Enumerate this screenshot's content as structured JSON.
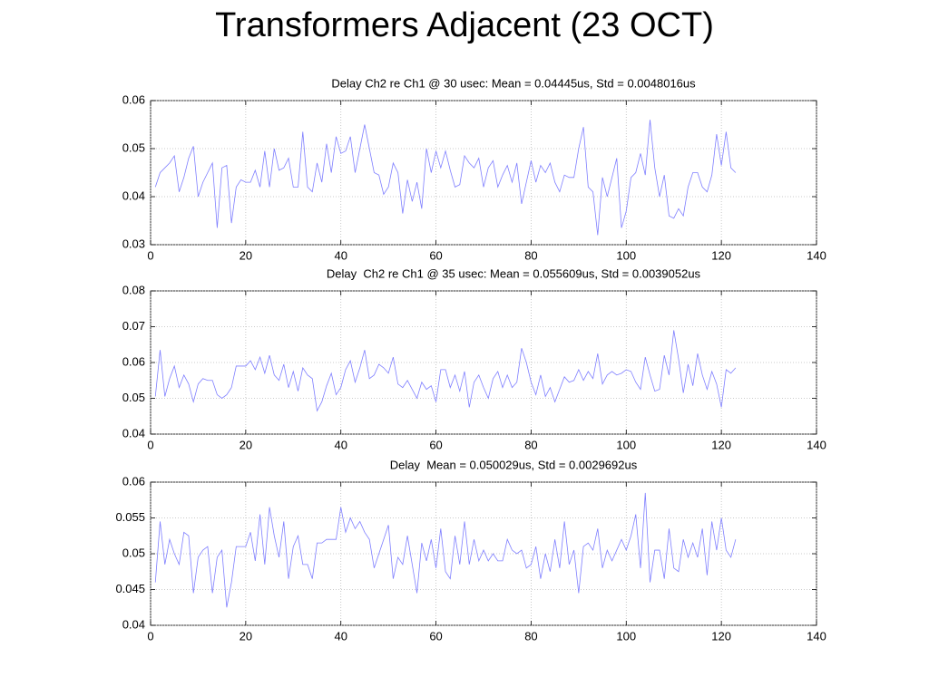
{
  "title": "Transformers Adjacent (23 OCT)",
  "chart_data": [
    {
      "type": "line",
      "title": "Delay Ch2 re Ch1 @ 30 usec: Mean = 0.04445us, Std = 0.0048016us",
      "xlim": [
        0,
        140
      ],
      "xticks": [
        0,
        20,
        40,
        60,
        80,
        100,
        120,
        140
      ],
      "ylim": [
        0.03,
        0.06
      ],
      "yticks": [
        0.03,
        0.04,
        0.05,
        0.06
      ],
      "grid": true,
      "color": "#7f7fff",
      "x": [
        1,
        2,
        3,
        4,
        5,
        6,
        7,
        8,
        9,
        10,
        11,
        12,
        13,
        14,
        15,
        16,
        17,
        18,
        19,
        20,
        21,
        22,
        23,
        24,
        25,
        26,
        27,
        28,
        29,
        30,
        31,
        32,
        33,
        34,
        35,
        36,
        37,
        38,
        39,
        40,
        41,
        42,
        43,
        44,
        45,
        46,
        47,
        48,
        49,
        50,
        51,
        52,
        53,
        54,
        55,
        56,
        57,
        58,
        59,
        60,
        61,
        62,
        63,
        64,
        65,
        66,
        67,
        68,
        69,
        70,
        71,
        72,
        73,
        74,
        75,
        76,
        77,
        78,
        79,
        80,
        81,
        82,
        83,
        84,
        85,
        86,
        87,
        88,
        89,
        90,
        91,
        92,
        93,
        94,
        95,
        96,
        97,
        98,
        99,
        100,
        101,
        102,
        103,
        104,
        105,
        106,
        107,
        108,
        109,
        110,
        111,
        112,
        113,
        114,
        115,
        116,
        117,
        118,
        119,
        120,
        121,
        122,
        123
      ],
      "values": [
        0.042,
        0.045,
        0.046,
        0.047,
        0.0485,
        0.041,
        0.044,
        0.048,
        0.0505,
        0.04,
        0.043,
        0.045,
        0.047,
        0.0335,
        0.046,
        0.0465,
        0.0345,
        0.042,
        0.0435,
        0.043,
        0.043,
        0.0455,
        0.042,
        0.0495,
        0.042,
        0.05,
        0.0455,
        0.046,
        0.048,
        0.042,
        0.042,
        0.0535,
        0.042,
        0.041,
        0.047,
        0.043,
        0.051,
        0.045,
        0.0525,
        0.049,
        0.0495,
        0.0525,
        0.045,
        0.05,
        0.055,
        0.05,
        0.045,
        0.0445,
        0.0405,
        0.042,
        0.047,
        0.045,
        0.0365,
        0.0435,
        0.039,
        0.043,
        0.0375,
        0.05,
        0.045,
        0.0495,
        0.046,
        0.0495,
        0.0455,
        0.042,
        0.0425,
        0.0485,
        0.047,
        0.046,
        0.048,
        0.042,
        0.046,
        0.0475,
        0.042,
        0.0445,
        0.0465,
        0.043,
        0.047,
        0.0385,
        0.043,
        0.0475,
        0.043,
        0.0465,
        0.045,
        0.047,
        0.043,
        0.041,
        0.0445,
        0.044,
        0.044,
        0.05,
        0.0545,
        0.042,
        0.041,
        0.032,
        0.044,
        0.04,
        0.044,
        0.048,
        0.0335,
        0.037,
        0.044,
        0.045,
        0.049,
        0.0445,
        0.056,
        0.046,
        0.04,
        0.0445,
        0.036,
        0.0355,
        0.0375,
        0.036,
        0.042,
        0.045,
        0.045,
        0.042,
        0.041,
        0.0445,
        0.053,
        0.0465,
        0.0535,
        0.046,
        0.045
      ]
    },
    {
      "type": "line",
      "title": "Delay  Ch2 re Ch1 @ 35 usec: Mean = 0.055609us, Std = 0.0039052us",
      "xlim": [
        0,
        140
      ],
      "xticks": [
        0,
        20,
        40,
        60,
        80,
        100,
        120,
        140
      ],
      "ylim": [
        0.04,
        0.08
      ],
      "yticks": [
        0.04,
        0.05,
        0.06,
        0.07,
        0.08
      ],
      "grid": true,
      "color": "#7f7fff",
      "x": [
        1,
        2,
        3,
        4,
        5,
        6,
        7,
        8,
        9,
        10,
        11,
        12,
        13,
        14,
        15,
        16,
        17,
        18,
        19,
        20,
        21,
        22,
        23,
        24,
        25,
        26,
        27,
        28,
        29,
        30,
        31,
        32,
        33,
        34,
        35,
        36,
        37,
        38,
        39,
        40,
        41,
        42,
        43,
        44,
        45,
        46,
        47,
        48,
        49,
        50,
        51,
        52,
        53,
        54,
        55,
        56,
        57,
        58,
        59,
        60,
        61,
        62,
        63,
        64,
        65,
        66,
        67,
        68,
        69,
        70,
        71,
        72,
        73,
        74,
        75,
        76,
        77,
        78,
        79,
        80,
        81,
        82,
        83,
        84,
        85,
        86,
        87,
        88,
        89,
        90,
        91,
        92,
        93,
        94,
        95,
        96,
        97,
        98,
        99,
        100,
        101,
        102,
        103,
        104,
        105,
        106,
        107,
        108,
        109,
        110,
        111,
        112,
        113,
        114,
        115,
        116,
        117,
        118,
        119,
        120,
        121,
        122,
        123
      ],
      "values": [
        0.0505,
        0.0635,
        0.0505,
        0.0555,
        0.059,
        0.053,
        0.0565,
        0.054,
        0.049,
        0.054,
        0.0555,
        0.055,
        0.055,
        0.051,
        0.05,
        0.051,
        0.053,
        0.059,
        0.059,
        0.059,
        0.0605,
        0.058,
        0.0615,
        0.057,
        0.062,
        0.0565,
        0.055,
        0.0595,
        0.053,
        0.0575,
        0.052,
        0.0585,
        0.0565,
        0.0555,
        0.0465,
        0.049,
        0.0535,
        0.057,
        0.051,
        0.053,
        0.058,
        0.0605,
        0.0545,
        0.0585,
        0.0635,
        0.0555,
        0.0565,
        0.0595,
        0.0585,
        0.057,
        0.0615,
        0.054,
        0.053,
        0.055,
        0.0525,
        0.05,
        0.0545,
        0.0525,
        0.0535,
        0.049,
        0.058,
        0.058,
        0.053,
        0.0565,
        0.052,
        0.0575,
        0.0475,
        0.0545,
        0.0565,
        0.053,
        0.05,
        0.0555,
        0.0575,
        0.053,
        0.0565,
        0.053,
        0.0545,
        0.064,
        0.06,
        0.0545,
        0.051,
        0.0565,
        0.0505,
        0.053,
        0.049,
        0.0525,
        0.056,
        0.0545,
        0.055,
        0.058,
        0.055,
        0.0575,
        0.0555,
        0.0625,
        0.054,
        0.0565,
        0.0575,
        0.0565,
        0.057,
        0.058,
        0.0575,
        0.0545,
        0.0525,
        0.0615,
        0.0565,
        0.052,
        0.0525,
        0.062,
        0.0565,
        0.069,
        0.061,
        0.0515,
        0.0595,
        0.0535,
        0.0625,
        0.0565,
        0.0525,
        0.0575,
        0.054,
        0.0475,
        0.058,
        0.057,
        0.0585
      ]
    },
    {
      "type": "line",
      "title": "Delay  Mean = 0.050029us, Std = 0.0029692us",
      "xlim": [
        0,
        140
      ],
      "xticks": [
        0,
        20,
        40,
        60,
        80,
        100,
        120,
        140
      ],
      "ylim": [
        0.04,
        0.06
      ],
      "yticks": [
        0.04,
        0.045,
        0.05,
        0.055,
        0.06
      ],
      "grid": true,
      "color": "#7f7fff",
      "x": [
        1,
        2,
        3,
        4,
        5,
        6,
        7,
        8,
        9,
        10,
        11,
        12,
        13,
        14,
        15,
        16,
        17,
        18,
        19,
        20,
        21,
        22,
        23,
        24,
        25,
        26,
        27,
        28,
        29,
        30,
        31,
        32,
        33,
        34,
        35,
        36,
        37,
        38,
        39,
        40,
        41,
        42,
        43,
        44,
        45,
        46,
        47,
        48,
        49,
        50,
        51,
        52,
        53,
        54,
        55,
        56,
        57,
        58,
        59,
        60,
        61,
        62,
        63,
        64,
        65,
        66,
        67,
        68,
        69,
        70,
        71,
        72,
        73,
        74,
        75,
        76,
        77,
        78,
        79,
        80,
        81,
        82,
        83,
        84,
        85,
        86,
        87,
        88,
        89,
        90,
        91,
        92,
        93,
        94,
        95,
        96,
        97,
        98,
        99,
        100,
        101,
        102,
        103,
        104,
        105,
        106,
        107,
        108,
        109,
        110,
        111,
        112,
        113,
        114,
        115,
        116,
        117,
        118,
        119,
        120,
        121,
        122,
        123
      ],
      "values": [
        0.046,
        0.0545,
        0.0485,
        0.052,
        0.05,
        0.0485,
        0.053,
        0.0525,
        0.0445,
        0.0495,
        0.0505,
        0.051,
        0.0445,
        0.0495,
        0.0505,
        0.0425,
        0.046,
        0.051,
        0.051,
        0.051,
        0.053,
        0.049,
        0.0555,
        0.0485,
        0.0565,
        0.0525,
        0.0495,
        0.0545,
        0.0465,
        0.051,
        0.0525,
        0.0485,
        0.0485,
        0.0465,
        0.0515,
        0.0515,
        0.052,
        0.052,
        0.052,
        0.0565,
        0.053,
        0.055,
        0.0535,
        0.0545,
        0.053,
        0.052,
        0.048,
        0.05,
        0.052,
        0.054,
        0.0465,
        0.0495,
        0.0485,
        0.0525,
        0.0485,
        0.0445,
        0.0515,
        0.049,
        0.052,
        0.048,
        0.0535,
        0.0475,
        0.0465,
        0.0525,
        0.0485,
        0.0545,
        0.0485,
        0.052,
        0.049,
        0.0505,
        0.049,
        0.05,
        0.049,
        0.049,
        0.052,
        0.0505,
        0.05,
        0.0505,
        0.048,
        0.0485,
        0.051,
        0.0465,
        0.05,
        0.0475,
        0.052,
        0.048,
        0.0545,
        0.0485,
        0.0505,
        0.0445,
        0.051,
        0.0515,
        0.0505,
        0.0535,
        0.048,
        0.0505,
        0.049,
        0.0505,
        0.052,
        0.0505,
        0.0525,
        0.0555,
        0.048,
        0.0585,
        0.046,
        0.0505,
        0.0505,
        0.0465,
        0.0535,
        0.048,
        0.0475,
        0.052,
        0.0495,
        0.0515,
        0.0495,
        0.0535,
        0.047,
        0.0545,
        0.0505,
        0.055,
        0.0505,
        0.0495,
        0.052
      ]
    }
  ]
}
